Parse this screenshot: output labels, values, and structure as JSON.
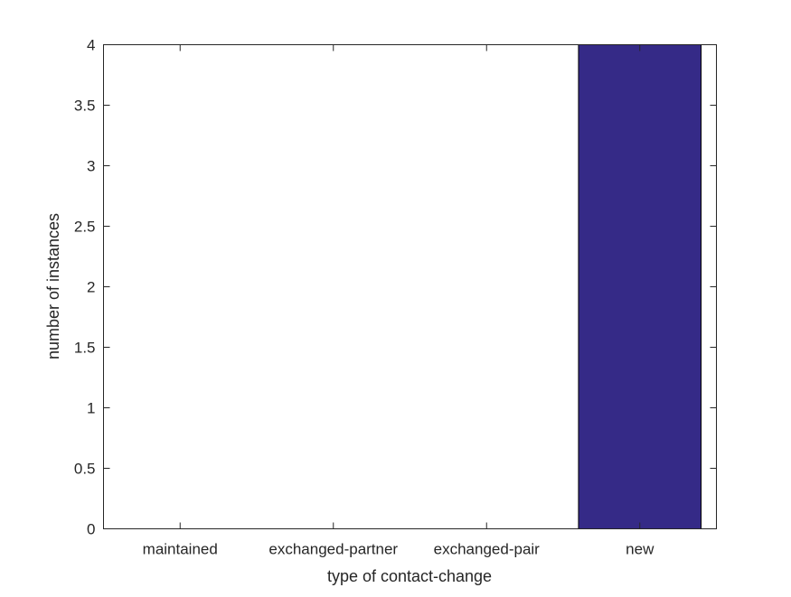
{
  "chart_data": {
    "type": "bar",
    "title": "",
    "xlabel": "type of contact-change",
    "ylabel": "number of instances",
    "categories": [
      "maintained",
      "exchanged-partner",
      "exchanged-pair",
      "new"
    ],
    "values": [
      0,
      0,
      0,
      4
    ],
    "ylim": [
      0,
      4
    ],
    "yticks": [
      "0",
      "0.5",
      "1",
      "1.5",
      "2",
      "2.5",
      "3",
      "3.5",
      "4"
    ],
    "grid": false,
    "legend": "none",
    "bar_color": "#352a87",
    "axis_color": "#262626"
  }
}
